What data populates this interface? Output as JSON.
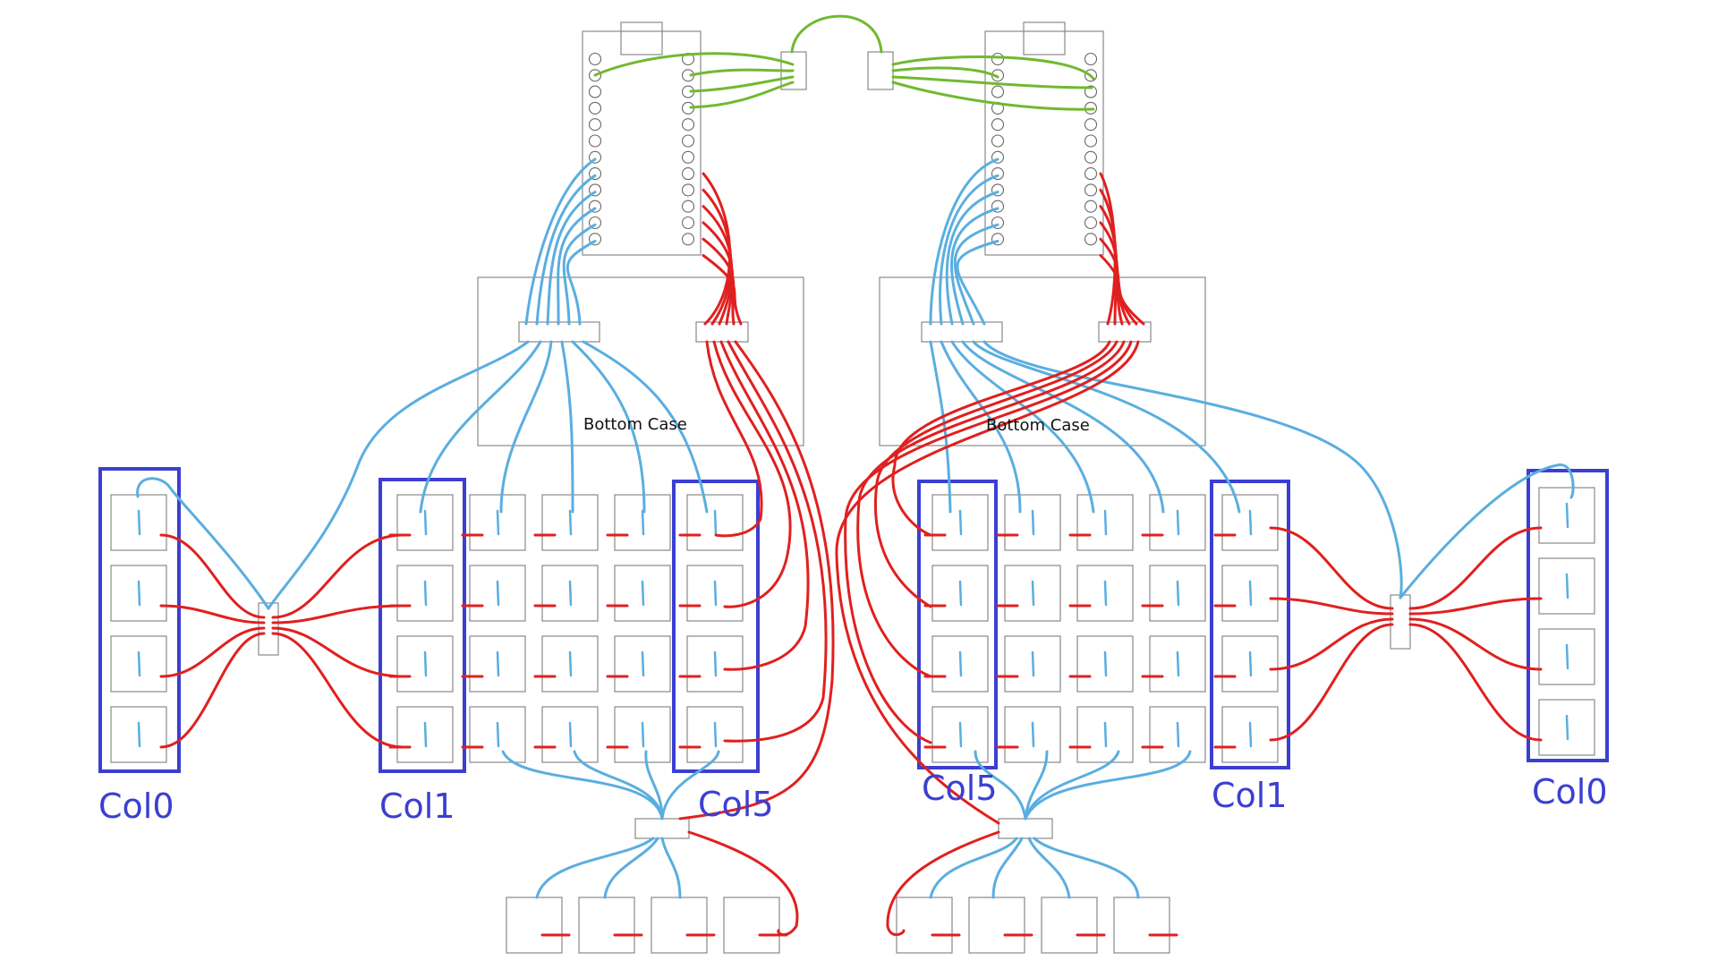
{
  "diagram": {
    "left_half": {
      "case_label": "Bottom Case",
      "col_labels": {
        "col0": "Col0",
        "col1": "Col1",
        "col5": "Col5"
      }
    },
    "right_half": {
      "case_label": "Bottom Case",
      "col_labels": {
        "col0": "Col0",
        "col1": "Col1",
        "col5": "Col5"
      }
    },
    "colors": {
      "column_wire": "#5aaee0",
      "row_wire": "#e0201f",
      "link_wire": "#72b92f",
      "highlight_box": "#3b3fd1",
      "outline": "#888888"
    }
  }
}
